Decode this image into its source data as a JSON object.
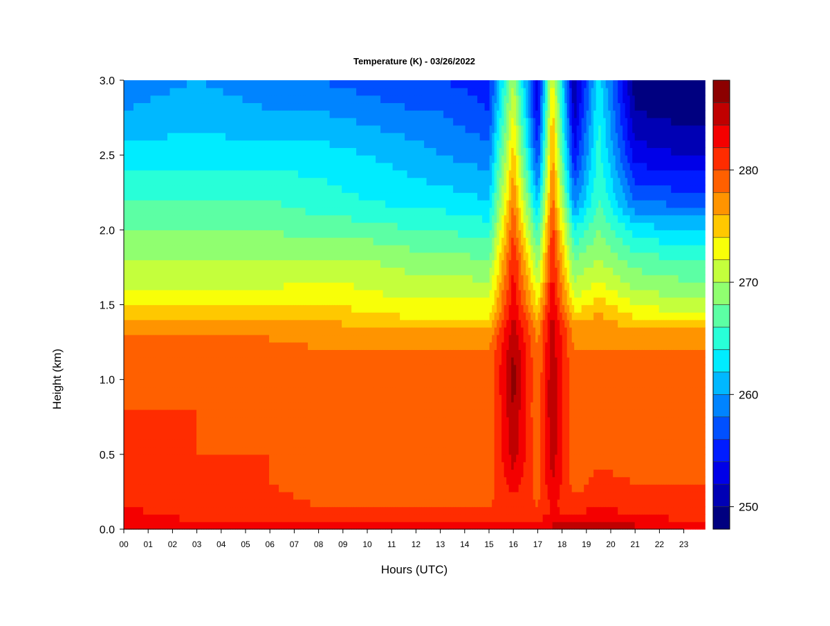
{
  "chart_data": {
    "type": "heatmap",
    "title": "Temperature (K) - 03/26/2022",
    "xlabel": "Hours (UTC)",
    "ylabel": "Height (km)",
    "x_ticks": [
      "00",
      "01",
      "02",
      "03",
      "04",
      "05",
      "06",
      "07",
      "08",
      "09",
      "10",
      "11",
      "12",
      "13",
      "14",
      "15",
      "16",
      "17",
      "18",
      "19",
      "20",
      "21",
      "22",
      "23"
    ],
    "y_ticks": [
      "0.0",
      "0.5",
      "1.0",
      "1.5",
      "2.0",
      "2.5",
      "3.0"
    ],
    "xlim": [
      0,
      24
    ],
    "ylim": [
      0,
      3.0
    ],
    "colorbar": {
      "ticks": [
        "250",
        "260",
        "270",
        "280"
      ],
      "range": [
        248,
        288
      ],
      "levels": 20,
      "colors": [
        "#000080",
        "#0000b4",
        "#0000e8",
        "#001cff",
        "#0050ff",
        "#0084ff",
        "#00b8ff",
        "#00ecff",
        "#28ffd8",
        "#5cffa4",
        "#90ff70",
        "#c4ff3c",
        "#f8ff08",
        "#ffc800",
        "#ff9400",
        "#ff6000",
        "#ff2c00",
        "#f40000",
        "#c00000",
        "#8c0000"
      ]
    },
    "profile_heights_km": [
      0.0,
      0.05,
      0.15,
      0.3,
      0.5,
      0.8,
      1.0,
      1.2,
      1.35,
      1.45,
      1.6,
      1.8,
      2.0,
      2.2,
      2.5,
      2.8,
      3.0
    ],
    "profiles": [
      {
        "hour": 0,
        "temperature_k": [
          284,
          283,
          282,
          281,
          281,
          280,
          279,
          279,
          277,
          275,
          272,
          270,
          268,
          266,
          263,
          260,
          259
        ]
      },
      {
        "hour": 3,
        "temperature_k": [
          283,
          282,
          281,
          280,
          280,
          280,
          279,
          279,
          277,
          275,
          272,
          270,
          268,
          266,
          263,
          261,
          260
        ]
      },
      {
        "hour": 6,
        "temperature_k": [
          283,
          282,
          281,
          280,
          280,
          279,
          279,
          279,
          277,
          275,
          272,
          270,
          268,
          266,
          263,
          260,
          259
        ]
      },
      {
        "hour": 8,
        "temperature_k": [
          283,
          281,
          280,
          279,
          279,
          279,
          278,
          278,
          277,
          275,
          273,
          270,
          267,
          265,
          263,
          260,
          258
        ]
      },
      {
        "hour": 10,
        "temperature_k": [
          283,
          281,
          280,
          279,
          279,
          278,
          278,
          278,
          276,
          274,
          272,
          270,
          267,
          264,
          262,
          259,
          257
        ]
      },
      {
        "hour": 12,
        "temperature_k": [
          283,
          281,
          280,
          279,
          279,
          278,
          278,
          278,
          276,
          273,
          271,
          269,
          266,
          263,
          261,
          258,
          256
        ]
      },
      {
        "hour": 13,
        "temperature_k": [
          283,
          281,
          280,
          279,
          278,
          278,
          278,
          278,
          276,
          273,
          271,
          269,
          266,
          263,
          260,
          258,
          256
        ]
      },
      {
        "hour": 15,
        "temperature_k": [
          284,
          282,
          280,
          279,
          279,
          278,
          278,
          278,
          276,
          273,
          271,
          268,
          265,
          262,
          259,
          256,
          255
        ]
      },
      {
        "hour": 16,
        "temperature_k": [
          284,
          282,
          281,
          283,
          285,
          286,
          287,
          286,
          285,
          284,
          283,
          282,
          280,
          278,
          275,
          272,
          270
        ]
      },
      {
        "hour": 17,
        "temperature_k": [
          284,
          282,
          280,
          279,
          279,
          278,
          278,
          278,
          277,
          275,
          272,
          269,
          265,
          261,
          256,
          253,
          252
        ]
      },
      {
        "hour": 17.6,
        "temperature_k": [
          285,
          283,
          282,
          284,
          285,
          286,
          286,
          285,
          285,
          284,
          283,
          282,
          281,
          279,
          277,
          275,
          273
        ]
      },
      {
        "hour": 18.5,
        "temperature_k": [
          285,
          283,
          281,
          279,
          279,
          278,
          278,
          278,
          277,
          274,
          271,
          268,
          264,
          259,
          254,
          251,
          250
        ]
      },
      {
        "hour": 19.5,
        "temperature_k": [
          286,
          284,
          282,
          281,
          279,
          279,
          278,
          278,
          277,
          276,
          273,
          270,
          268,
          266,
          265,
          264,
          263
        ]
      },
      {
        "hour": 21,
        "temperature_k": [
          285,
          283,
          281,
          280,
          279,
          278,
          278,
          278,
          276,
          273,
          270,
          267,
          263,
          258,
          253,
          250,
          249
        ]
      },
      {
        "hour": 23,
        "temperature_k": [
          284,
          282,
          281,
          280,
          279,
          278,
          278,
          278,
          276,
          272,
          269,
          266,
          262,
          257,
          252,
          249,
          248
        ]
      }
    ],
    "grid": false,
    "legend": "colorbar-right"
  }
}
